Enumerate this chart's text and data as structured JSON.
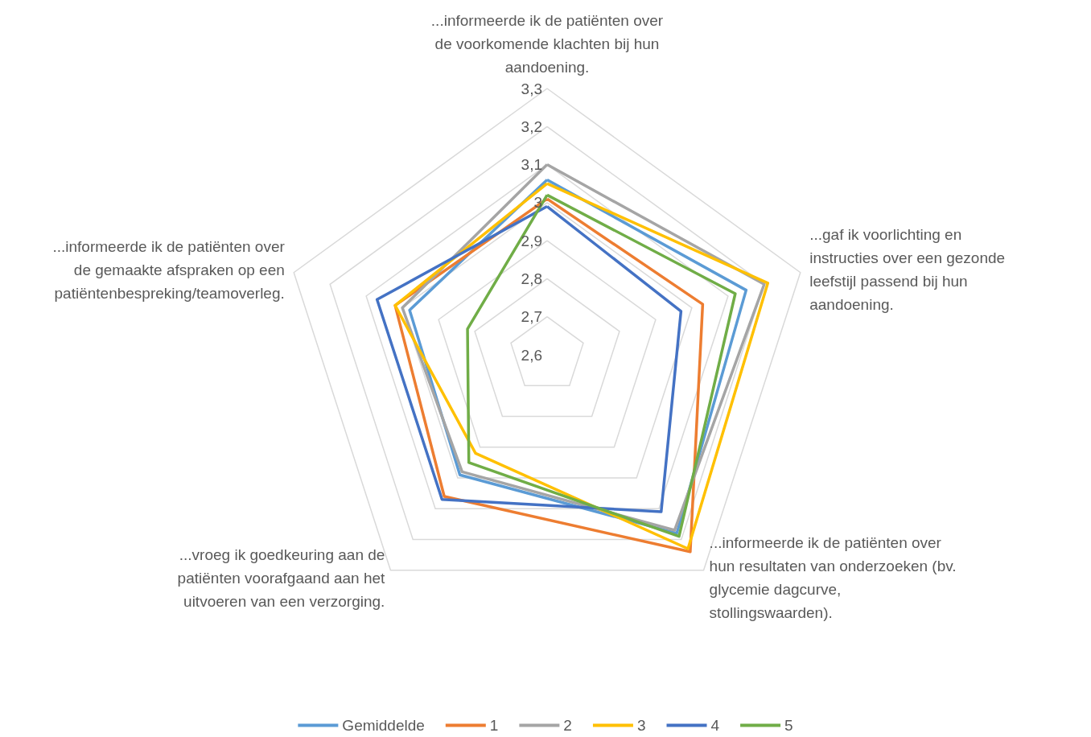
{
  "chart_data": {
    "type": "radar",
    "categories": [
      "...informeerde ik de patiënten over de voorkomende klachten bij hun aandoening.",
      "...gaf ik voorlichting en instructies over een gezonde leefstijl passend bij hun aandoening.",
      "...informeerde ik de patiënten over hun resultaten van onderzoeken (bv. glycemie dagcurve, stollingswaarden).",
      "...vroeg ik goedkeuring aan de patiënten voorafgaand aan het uitvoeren van een verzorging.",
      "...informeerde ik de patiënten over de gemaakte afspraken op een patiëntenbespreking/teamoverleg."
    ],
    "ylim": [
      2.6,
      3.3
    ],
    "yticks": [
      {
        "value": 2.6,
        "label": "2,6"
      },
      {
        "value": 2.7,
        "label": "2,7"
      },
      {
        "value": 2.8,
        "label": "2,8"
      },
      {
        "value": 2.9,
        "label": "2,9"
      },
      {
        "value": 3.0,
        "label": "3"
      },
      {
        "value": 3.1,
        "label": "3,1"
      },
      {
        "value": 3.2,
        "label": "3,2"
      },
      {
        "value": 3.3,
        "label": "3,3"
      }
    ],
    "grid": true,
    "legend": "bottom",
    "marker": "none",
    "series": [
      {
        "name": "Gemiddelde",
        "color": "#5b9bd5",
        "values": [
          3.06,
          3.15,
          3.18,
          2.99,
          2.98
        ]
      },
      {
        "name": "1",
        "color": "#ed7d31",
        "values": [
          3.01,
          3.03,
          3.24,
          3.06,
          3.02
        ]
      },
      {
        "name": "2",
        "color": "#a5a5a5",
        "values": [
          3.1,
          3.2,
          3.17,
          2.98,
          3.0
        ]
      },
      {
        "name": "3",
        "color": "#ffc000",
        "values": [
          3.05,
          3.21,
          3.23,
          2.92,
          3.02
        ]
      },
      {
        "name": "4",
        "color": "#4472c4",
        "values": [
          2.99,
          2.97,
          3.11,
          3.07,
          3.07
        ]
      },
      {
        "name": "5",
        "color": "#70ad47",
        "values": [
          3.02,
          3.12,
          3.19,
          2.95,
          2.82
        ]
      }
    ]
  }
}
